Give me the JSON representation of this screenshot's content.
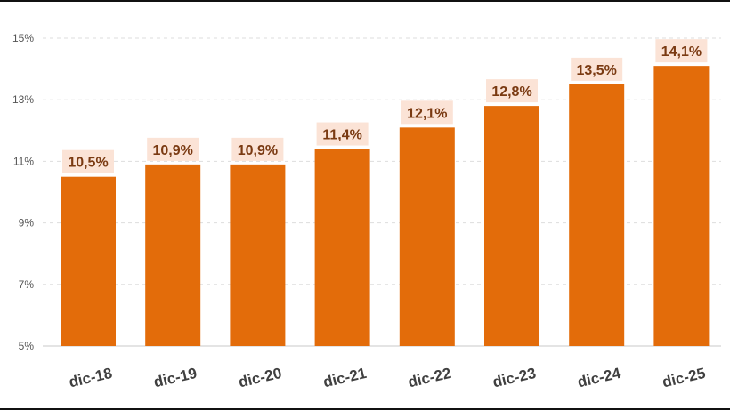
{
  "chart_data": {
    "type": "bar",
    "categories": [
      "dic-18",
      "dic-19",
      "dic-20",
      "dic-21",
      "dic-22",
      "dic-23",
      "dic-24",
      "dic-25"
    ],
    "values": [
      10.5,
      10.9,
      10.9,
      11.4,
      12.1,
      12.8,
      13.5,
      14.1
    ],
    "data_labels": [
      "10,5%",
      "10,9%",
      "10,9%",
      "11,4%",
      "12,1%",
      "12,8%",
      "13,5%",
      "14,1%"
    ],
    "yticks": [
      5,
      7,
      9,
      11,
      13,
      15
    ],
    "ytick_labels": [
      "5%",
      "7%",
      "9%",
      "11%",
      "13%",
      "15%"
    ],
    "ylim": [
      5,
      15
    ],
    "grid": true,
    "bar_color": "#e36c0a",
    "label_bg_color": "#fbe3d6",
    "label_color": "#7a3a12"
  }
}
